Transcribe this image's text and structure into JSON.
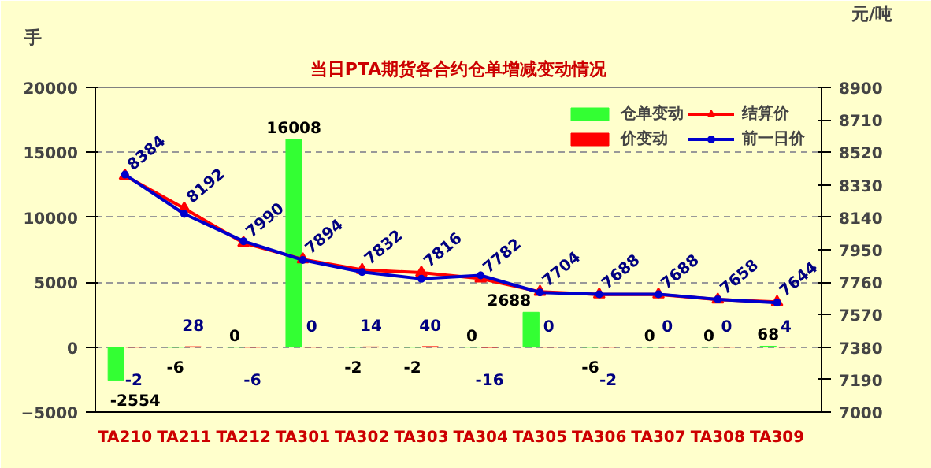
{
  "chart_data": {
    "type": "bar",
    "title": "当日PTA期货各合约仓单增减变动情况",
    "ylabel": "手",
    "y2label": "元/吨",
    "categories": [
      "TA210",
      "TA211",
      "TA212",
      "TA301",
      "TA302",
      "TA303",
      "TA304",
      "TA305",
      "TA306",
      "TA307",
      "TA308",
      "TA309"
    ],
    "series": [
      {
        "name": "仓单变动",
        "color": "#33ff33",
        "values": [
          -2554,
          -6,
          0,
          16008,
          -2,
          -2,
          0,
          2688,
          -6,
          0,
          0,
          68
        ],
        "value_labels": [
          "-2554",
          "-6",
          "0",
          "16008",
          "-2",
          "-2",
          "0",
          "2688",
          "-6",
          "0",
          "0",
          "68"
        ]
      },
      {
        "name": "价变动",
        "color": "#ff0000",
        "values": [
          -2,
          28,
          -6,
          0,
          14,
          40,
          -16,
          0,
          -2,
          0,
          0,
          4
        ],
        "value_labels": [
          "-2",
          "28",
          "-6",
          "0",
          "14",
          "40",
          "-16",
          "0",
          "-2",
          "0",
          "0",
          "4"
        ]
      },
      {
        "name": "结算价",
        "type": "line",
        "axis": "y2",
        "color": "#ff0000",
        "marker": "triangle",
        "values": [
          8384,
          8192,
          7990,
          7894,
          7832,
          7816,
          7782,
          7704,
          7688,
          7688,
          7658,
          7644
        ],
        "value_labels": [
          "8384",
          "8192",
          "7990",
          "7894",
          "7832",
          "7816",
          "7782",
          "7704",
          "7688",
          "7688",
          "7658",
          "7644"
        ]
      },
      {
        "name": "前一日价",
        "type": "line",
        "axis": "y2",
        "color": "#0000cc",
        "marker": "circle",
        "values": [
          8390,
          8160,
          8000,
          7890,
          7820,
          7780,
          7800,
          7700,
          7690,
          7690,
          7660,
          7640
        ]
      }
    ],
    "ylim": [
      -5000,
      20000
    ],
    "yticks": [
      -5000,
      0,
      5000,
      10000,
      15000,
      20000
    ],
    "y2lim": [
      7000,
      8900
    ],
    "y2ticks": [
      7000,
      7190,
      7380,
      7570,
      7760,
      7950,
      8140,
      8330,
      8520,
      8710,
      8900
    ],
    "grid": "y",
    "legend": "top right"
  }
}
